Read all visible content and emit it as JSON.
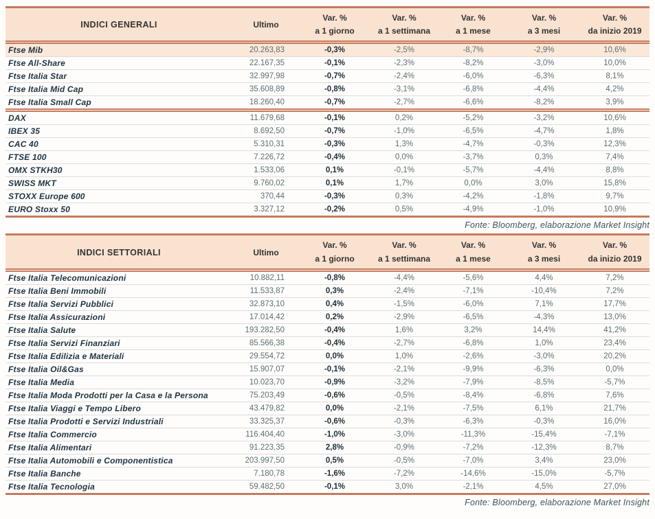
{
  "colors": {
    "accent_line": "#c67a5c",
    "header_bg": "#fae2d0",
    "highlight_row_bg": "#fbe8d8",
    "row_divider": "#dcdcdc",
    "name_text": "#1e3340",
    "value_text": "#5e6e70"
  },
  "header": {
    "ultimo": "Ultimo",
    "var_columns": [
      {
        "line1": "Var. %",
        "line2": "a 1 giorno"
      },
      {
        "line1": "Var. %",
        "line2": "a 1 settimana"
      },
      {
        "line1": "Var. %",
        "line2": "a 1 mese"
      },
      {
        "line1": "Var. %",
        "line2": "a 3 mesi"
      },
      {
        "line1": "Var. %",
        "line2": "da inizio 2019"
      }
    ]
  },
  "tables": [
    {
      "title": "INDICI GENERALI",
      "fonte": "Fonte: Bloomberg, elaborazione Market Insight",
      "separator_before": 5,
      "rows": [
        {
          "name": "Ftse Mib",
          "ultimo": "20.263,83",
          "d1": "-0,3%",
          "w1": "-2,5%",
          "m1": "-8,7%",
          "m3": "-2,9%",
          "ytd": "10,6%",
          "highlight": true
        },
        {
          "name": "Ftse All-Share",
          "ultimo": "22.167,35",
          "d1": "-0,1%",
          "w1": "-2,3%",
          "m1": "-8,2%",
          "m3": "-3,0%",
          "ytd": "10,0%"
        },
        {
          "name": "Ftse Italia Star",
          "ultimo": "32.997,98",
          "d1": "-0,7%",
          "w1": "-2,4%",
          "m1": "-6,0%",
          "m3": "-6,3%",
          "ytd": "8,1%"
        },
        {
          "name": "Ftse Italia Mid Cap",
          "ultimo": "35.608,89",
          "d1": "-0,8%",
          "w1": "-3,1%",
          "m1": "-6,8%",
          "m3": "-4,4%",
          "ytd": "4,2%"
        },
        {
          "name": "Ftse Italia Small Cap",
          "ultimo": "18.260,40",
          "d1": "-0,7%",
          "w1": "-2,7%",
          "m1": "-6,6%",
          "m3": "-8,2%",
          "ytd": "3,9%"
        },
        {
          "name": "DAX",
          "ultimo": "11.679,68",
          "d1": "-0,1%",
          "w1": "0,2%",
          "m1": "-5,2%",
          "m3": "-3,2%",
          "ytd": "10,6%"
        },
        {
          "name": "IBEX 35",
          "ultimo": "8.692,50",
          "d1": "-0,7%",
          "w1": "-1,0%",
          "m1": "-6,5%",
          "m3": "-4,7%",
          "ytd": "1,8%"
        },
        {
          "name": "CAC 40",
          "ultimo": "5.310,31",
          "d1": "-0,3%",
          "w1": "1,3%",
          "m1": "-4,7%",
          "m3": "-0,3%",
          "ytd": "12,3%"
        },
        {
          "name": "FTSE 100",
          "ultimo": "7.226,72",
          "d1": "-0,4%",
          "w1": "0,0%",
          "m1": "-3,7%",
          "m3": "0,3%",
          "ytd": "7,4%"
        },
        {
          "name": "OMX STKH30",
          "ultimo": "1.533,06",
          "d1": "0,1%",
          "w1": "-0,1%",
          "m1": "-5,7%",
          "m3": "-4,4%",
          "ytd": "8,8%"
        },
        {
          "name": "SWISS MKT",
          "ultimo": "9.760,02",
          "d1": "0,1%",
          "w1": "1,7%",
          "m1": "0,0%",
          "m3": "3,0%",
          "ytd": "15,8%"
        },
        {
          "name": "STOXX Europe 600",
          "ultimo": "370,44",
          "d1": "-0,3%",
          "w1": "0,3%",
          "m1": "-4,2%",
          "m3": "-1,8%",
          "ytd": "9,7%"
        },
        {
          "name": "EURO Stoxx 50",
          "ultimo": "3.327,12",
          "d1": "-0,2%",
          "w1": "0,5%",
          "m1": "-4,9%",
          "m3": "-1,0%",
          "ytd": "10,9%"
        }
      ]
    },
    {
      "title": "INDICI SETTORIALI",
      "fonte": "Fonte: Bloomberg, elaborazione Market Insight",
      "separator_before": -1,
      "rows": [
        {
          "name": "Ftse Italia Telecomunicazioni",
          "ultimo": "10.882,11",
          "d1": "-0,8%",
          "w1": "-4,4%",
          "m1": "-5,6%",
          "m3": "4,4%",
          "ytd": "7,2%"
        },
        {
          "name": "Ftse Italia Beni Immobili",
          "ultimo": "11.533,87",
          "d1": "0,3%",
          "w1": "-2,4%",
          "m1": "-7,1%",
          "m3": "-10,4%",
          "ytd": "7,2%"
        },
        {
          "name": "Ftse Italia Servizi Pubblici",
          "ultimo": "32.873,10",
          "d1": "0,4%",
          "w1": "-1,5%",
          "m1": "-6,0%",
          "m3": "7,1%",
          "ytd": "17,7%"
        },
        {
          "name": "Ftse Italia Assicurazioni",
          "ultimo": "17.014,42",
          "d1": "0,2%",
          "w1": "-2,9%",
          "m1": "-6,5%",
          "m3": "-4,3%",
          "ytd": "13,0%"
        },
        {
          "name": "Ftse Italia Salute",
          "ultimo": "193.282,50",
          "d1": "-0,4%",
          "w1": "1,6%",
          "m1": "3,2%",
          "m3": "14,4%",
          "ytd": "41,2%"
        },
        {
          "name": "Ftse Italia Servizi Finanziari",
          "ultimo": "85.566,38",
          "d1": "-0,4%",
          "w1": "-2,7%",
          "m1": "-6,8%",
          "m3": "1,0%",
          "ytd": "23,4%"
        },
        {
          "name": "Ftse Italia Edilizia e Materiali",
          "ultimo": "29.554,72",
          "d1": "0,0%",
          "w1": "1,0%",
          "m1": "-2,6%",
          "m3": "-3,0%",
          "ytd": "20,2%"
        },
        {
          "name": "Ftse Italia Oil&Gas",
          "ultimo": "15.907,07",
          "d1": "-0,1%",
          "w1": "-2,1%",
          "m1": "-9,9%",
          "m3": "-6,3%",
          "ytd": "0,0%"
        },
        {
          "name": "Ftse Italia Media",
          "ultimo": "10.023,70",
          "d1": "-0,9%",
          "w1": "-3,2%",
          "m1": "-7,9%",
          "m3": "-8,5%",
          "ytd": "-5,7%"
        },
        {
          "name": "Ftse Italia Moda Prodotti per la Casa e la Persona",
          "ultimo": "75.203,49",
          "d1": "-0,6%",
          "w1": "-0,5%",
          "m1": "-8,4%",
          "m3": "-6,8%",
          "ytd": "7,6%"
        },
        {
          "name": "Ftse Italia Viaggi e Tempo Libero",
          "ultimo": "43.479,82",
          "d1": "0,0%",
          "w1": "-2,1%",
          "m1": "-7,5%",
          "m3": "6,1%",
          "ytd": "21,7%"
        },
        {
          "name": "Ftse Italia Prodotti e Servizi Industriali",
          "ultimo": "33.325,37",
          "d1": "-0,6%",
          "w1": "-0,3%",
          "m1": "-6,3%",
          "m3": "-0,3%",
          "ytd": "16,0%"
        },
        {
          "name": "Ftse Italia Commercio",
          "ultimo": "116.404,40",
          "d1": "-1,0%",
          "w1": "-3,0%",
          "m1": "-11,3%",
          "m3": "-15,4%",
          "ytd": "-7,1%"
        },
        {
          "name": "Ftse Italia Alimentari",
          "ultimo": "91.223,35",
          "d1": "2,8%",
          "w1": "-0,9%",
          "m1": "-7,2%",
          "m3": "-12,3%",
          "ytd": "8,7%"
        },
        {
          "name": "Ftse Italia Automobili e Componentistica",
          "ultimo": "203.997,50",
          "d1": "0,5%",
          "w1": "-0,5%",
          "m1": "-7,0%",
          "m3": "3,4%",
          "ytd": "23,0%"
        },
        {
          "name": "Ftse Italia Banche",
          "ultimo": "7.180,78",
          "d1": "-1,6%",
          "w1": "-7,2%",
          "m1": "-14,6%",
          "m3": "-15,0%",
          "ytd": "-5,7%"
        },
        {
          "name": "Ftse Italia Tecnologia",
          "ultimo": "59.482,50",
          "d1": "-0,1%",
          "w1": "3,0%",
          "m1": "-2,1%",
          "m3": "4,5%",
          "ytd": "27,0%"
        }
      ]
    }
  ]
}
